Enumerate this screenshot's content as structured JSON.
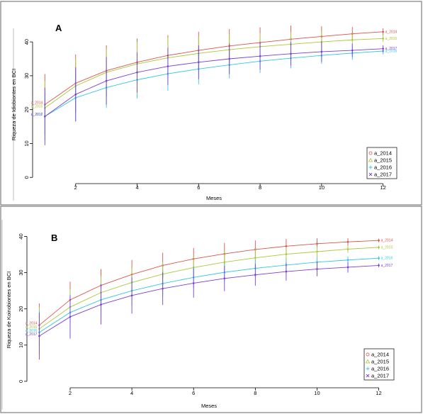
{
  "chart_data": [
    {
      "type": "line",
      "panel_label": "A",
      "xlabel": "Meses",
      "ylabel": "Riqueza de Idiobiontes en BCI",
      "x": [
        1,
        2,
        3,
        4,
        5,
        6,
        7,
        8,
        9,
        10,
        11,
        12
      ],
      "xticks": [
        2,
        4,
        6,
        8,
        10,
        12
      ],
      "yticks": [
        0,
        10,
        20,
        30,
        40
      ],
      "xlim": [
        0.6,
        12.4
      ],
      "ylim": [
        -1,
        44
      ],
      "grid": false,
      "legend_position": "bottom-right",
      "series": [
        {
          "name": "a_2014",
          "color": "#d9544f",
          "marker": "circle",
          "values": [
            21.5,
            27.8,
            31.5,
            34.0,
            36.0,
            37.5,
            38.8,
            39.8,
            40.8,
            41.6,
            42.4,
            43.0
          ],
          "err": [
            9,
            8.5,
            7.5,
            7,
            6,
            5.5,
            5,
            4.5,
            4,
            3,
            2,
            1
          ]
        },
        {
          "name": "a_2015",
          "color": "#a8c93a",
          "marker": "triangle",
          "values": [
            20.5,
            27.0,
            31.0,
            33.5,
            35.3,
            36.6,
            37.7,
            38.6,
            39.3,
            40.0,
            40.6,
            41.0
          ],
          "err": [
            8,
            8,
            7,
            6.5,
            6,
            5,
            4.5,
            4,
            3.5,
            3,
            2,
            1
          ]
        },
        {
          "name": "a_2016",
          "color": "#34c8e2",
          "marker": "plus",
          "values": [
            18.0,
            23.5,
            26.5,
            28.8,
            30.6,
            32.0,
            33.2,
            34.3,
            35.2,
            36.0,
            36.7,
            37.3
          ],
          "err": [
            7,
            7,
            6,
            5.5,
            5,
            4.5,
            4,
            3.5,
            3,
            2.5,
            2,
            1
          ]
        },
        {
          "name": "a_2017",
          "color": "#7a3fd6",
          "marker": "cross",
          "values": [
            18.0,
            24.5,
            28.5,
            31.0,
            32.8,
            34.0,
            35.0,
            35.8,
            36.5,
            37.1,
            37.5,
            38.0
          ],
          "err": [
            8.5,
            8,
            7,
            6,
            5.5,
            5,
            4.5,
            4,
            3.5,
            3,
            2,
            1
          ]
        }
      ]
    },
    {
      "type": "line",
      "panel_label": "B",
      "xlabel": "Meses",
      "ylabel": "Riqueza de Koinobiontes en BCI",
      "x": [
        1,
        2,
        3,
        4,
        5,
        6,
        7,
        8,
        9,
        10,
        11,
        12
      ],
      "xticks": [
        2,
        4,
        6,
        8,
        10,
        12
      ],
      "yticks": [
        0,
        10,
        20,
        30,
        40
      ],
      "xlim": [
        0.6,
        12.4
      ],
      "ylim": [
        -1,
        40.5
      ],
      "grid": false,
      "legend_position": "bottom-right",
      "series": [
        {
          "name": "a_2014",
          "color": "#d9544f",
          "marker": "circle",
          "values": [
            15.5,
            22.5,
            26.5,
            29.5,
            32.0,
            33.8,
            35.2,
            36.4,
            37.3,
            38.0,
            38.5,
            38.9
          ],
          "err": [
            6,
            5,
            4.5,
            4,
            3.5,
            3,
            3,
            2.5,
            2,
            1.5,
            1,
            0.5
          ]
        },
        {
          "name": "a_2015",
          "color": "#a8c93a",
          "marker": "triangle",
          "values": [
            14.5,
            20.5,
            24.5,
            27.3,
            29.6,
            31.4,
            32.9,
            34.1,
            35.1,
            35.8,
            36.5,
            37.0
          ],
          "err": [
            6,
            5,
            4.5,
            4,
            3.5,
            3,
            3,
            2.5,
            2,
            1.5,
            1,
            0.5
          ]
        },
        {
          "name": "a_2016",
          "color": "#34c8e2",
          "marker": "plus",
          "values": [
            13.5,
            19.0,
            22.5,
            25.0,
            27.0,
            28.7,
            30.1,
            31.2,
            32.1,
            32.9,
            33.5,
            34.0
          ],
          "err": [
            6,
            5,
            4.5,
            4,
            3.5,
            3,
            2.5,
            2.5,
            2,
            1.5,
            1,
            0.5
          ]
        },
        {
          "name": "a_2017",
          "color": "#7a3fd6",
          "marker": "cross",
          "values": [
            12.5,
            17.8,
            21.2,
            23.7,
            25.6,
            27.1,
            28.4,
            29.4,
            30.3,
            31.0,
            31.5,
            32.0
          ],
          "err": [
            6.5,
            6,
            5.5,
            5,
            4.5,
            4,
            3.5,
            3,
            2.5,
            2,
            1.5,
            0.5
          ]
        }
      ]
    }
  ]
}
